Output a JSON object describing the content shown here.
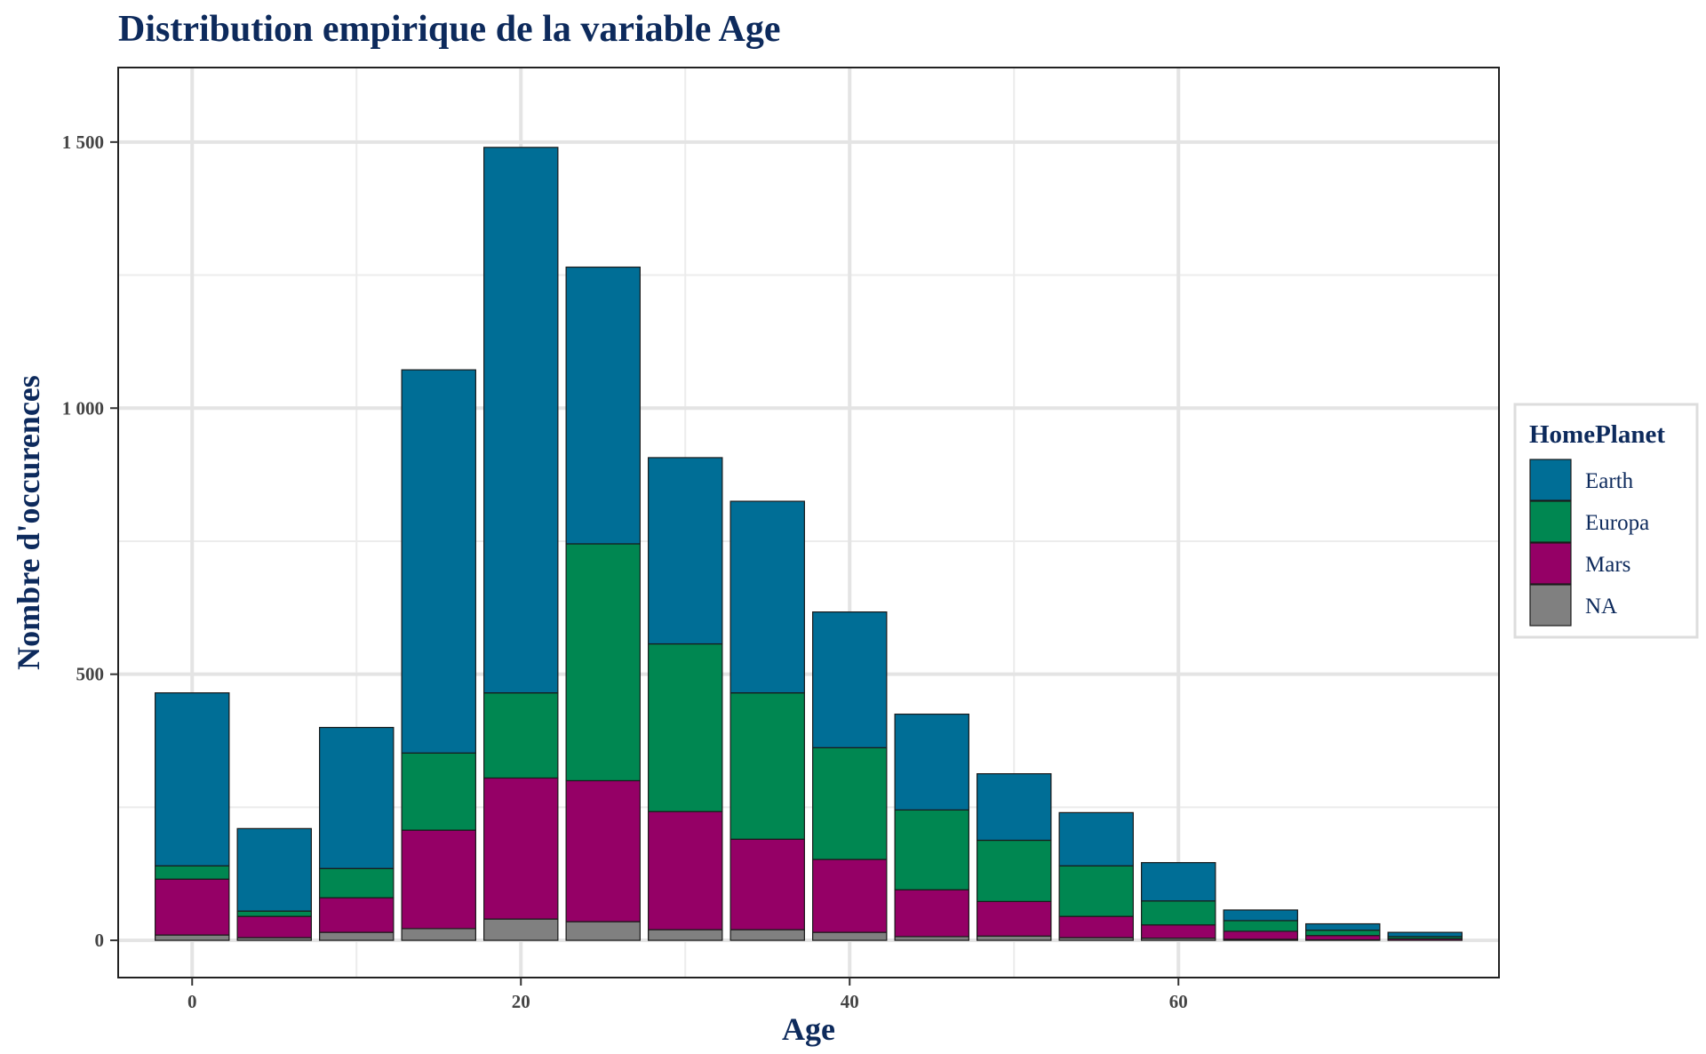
{
  "chart_data": {
    "type": "bar",
    "stacked": true,
    "title": "Distribution empirique de la variable Age",
    "xlabel": "Age",
    "ylabel": "Nombre d'occurences",
    "x_bin_centers": [
      0,
      5,
      10,
      15,
      20,
      25,
      30,
      35,
      40,
      45,
      50,
      55,
      60,
      65,
      70,
      75
    ],
    "x_ticks": [
      0,
      20,
      40,
      60
    ],
    "x_tick_labels": [
      "0",
      "20",
      "40",
      "60"
    ],
    "y_ticks": [
      0,
      500,
      1000,
      1500
    ],
    "y_tick_labels": [
      "0",
      "500",
      "1 000",
      "1 500"
    ],
    "xlim": [
      -4.5,
      79.5
    ],
    "ylim": [
      -70,
      1640
    ],
    "grid": true,
    "legend": {
      "title": "HomePlanet",
      "position": "right"
    },
    "series": [
      {
        "name": "Earth",
        "color": "#006e96",
        "values": [
          325,
          155,
          265,
          720,
          1025,
          520,
          350,
          360,
          255,
          180,
          125,
          100,
          72,
          20,
          12,
          8
        ]
      },
      {
        "name": "Europa",
        "color": "#008751",
        "values": [
          25,
          10,
          55,
          145,
          160,
          445,
          315,
          275,
          210,
          150,
          115,
          95,
          45,
          20,
          10,
          4
        ]
      },
      {
        "name": "Mars",
        "color": "#950066",
        "values": [
          105,
          40,
          65,
          185,
          265,
          265,
          222,
          170,
          137,
          88,
          65,
          40,
          25,
          15,
          8,
          3
        ]
      },
      {
        "name": "NA",
        "color": "#808080",
        "values": [
          10,
          5,
          15,
          22,
          40,
          35,
          20,
          20,
          15,
          7,
          8,
          5,
          4,
          2,
          1,
          0
        ]
      }
    ]
  }
}
